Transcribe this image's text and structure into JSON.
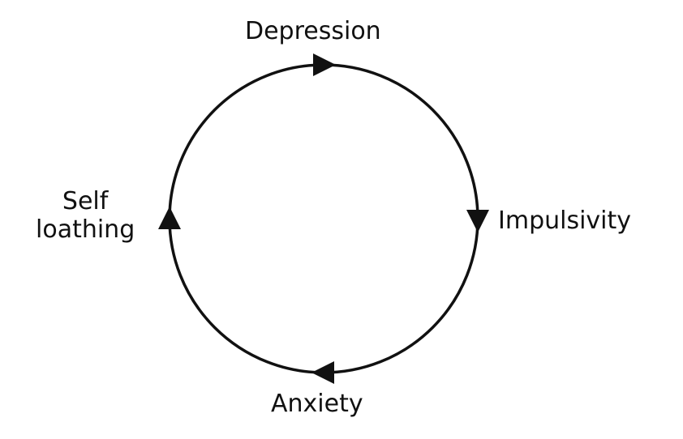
{
  "diagram": {
    "type": "cycle",
    "stroke_color": "#111111",
    "nodes": [
      {
        "id": "depression",
        "label": "Depression"
      },
      {
        "id": "impulsivity",
        "label": "Impulsivity"
      },
      {
        "id": "anxiety",
        "label": "Anxiety"
      },
      {
        "id": "self_loathing",
        "label_line1": "Self",
        "label_line2": "loathing"
      }
    ],
    "edges": [
      {
        "from": "self_loathing",
        "to": "depression"
      },
      {
        "from": "depression",
        "to": "impulsivity"
      },
      {
        "from": "impulsivity",
        "to": "anxiety"
      },
      {
        "from": "anxiety",
        "to": "self_loathing"
      }
    ],
    "direction": "clockwise"
  }
}
